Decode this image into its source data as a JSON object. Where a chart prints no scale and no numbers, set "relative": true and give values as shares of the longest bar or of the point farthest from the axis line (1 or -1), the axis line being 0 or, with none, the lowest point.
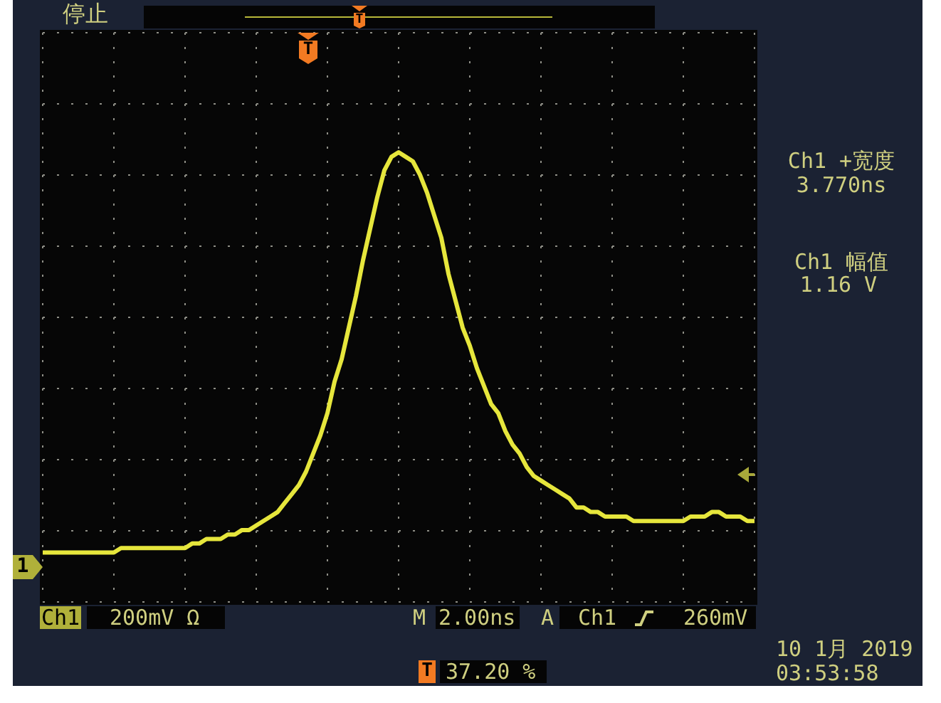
{
  "chart_data": {
    "type": "line",
    "relative": true,
    "grid": true,
    "color": "#e6e63c",
    "categories": [
      null,
      null,
      null,
      null,
      null,
      null,
      null,
      null,
      null,
      null,
      null,
      null,
      null,
      null,
      null,
      null,
      null,
      null,
      null,
      null,
      null,
      null,
      null,
      null,
      null,
      null,
      null,
      null,
      null,
      null,
      null,
      null,
      null,
      null,
      null,
      null,
      null,
      null,
      null,
      null,
      null,
      null,
      null,
      null,
      null,
      null,
      null,
      null,
      null,
      null,
      null,
      null,
      null,
      null,
      null,
      null,
      null,
      null,
      null,
      null,
      null,
      null,
      null,
      null,
      null,
      null,
      null,
      null,
      null,
      null,
      null,
      null,
      null,
      null,
      null,
      null,
      null,
      null,
      null,
      null,
      null,
      null,
      null,
      null,
      null,
      null,
      null,
      null,
      null,
      null,
      null,
      null,
      null,
      null,
      null,
      null,
      null,
      null,
      null,
      null,
      null
    ],
    "values": [
      0.11,
      0.11,
      0.11,
      0.11,
      0.11,
      0.11,
      0.11,
      0.11,
      0.11,
      0.11,
      0.11,
      0.12,
      0.12,
      0.12,
      0.12,
      0.12,
      0.12,
      0.12,
      0.12,
      0.12,
      0.12,
      0.13,
      0.13,
      0.14,
      0.14,
      0.14,
      0.15,
      0.15,
      0.16,
      0.16,
      0.17,
      0.18,
      0.19,
      0.2,
      0.22,
      0.24,
      0.26,
      0.29,
      0.33,
      0.37,
      0.42,
      0.49,
      0.54,
      0.61,
      0.68,
      0.76,
      0.83,
      0.9,
      0.96,
      0.99,
      1,
      0.99,
      0.98,
      0.95,
      0.91,
      0.86,
      0.81,
      0.73,
      0.67,
      0.61,
      0.57,
      0.52,
      0.48,
      0.44,
      0.42,
      0.38,
      0.35,
      0.33,
      0.3,
      0.28,
      0.27,
      0.26,
      0.25,
      0.24,
      0.23,
      0.21,
      0.21,
      0.2,
      0.2,
      0.19,
      0.19,
      0.19,
      0.19,
      0.18,
      0.18,
      0.18,
      0.18,
      0.18,
      0.18,
      0.18,
      0.18,
      0.19,
      0.19,
      0.19,
      0.2,
      0.2,
      0.19,
      0.19,
      0.19,
      0.18,
      0.18
    ],
    "annotations": [
      "停止",
      "T",
      "T",
      "Ch1 +宽度",
      "3.770ns",
      "Ch1 幅值",
      "1.16 V",
      "1",
      "Ch1",
      "200mV Ω",
      "M",
      "2.00ns",
      "A",
      "Ch1",
      "260mV",
      "T",
      "37.20 %",
      "10 1月 2019",
      "03:53:58"
    ]
  }
}
